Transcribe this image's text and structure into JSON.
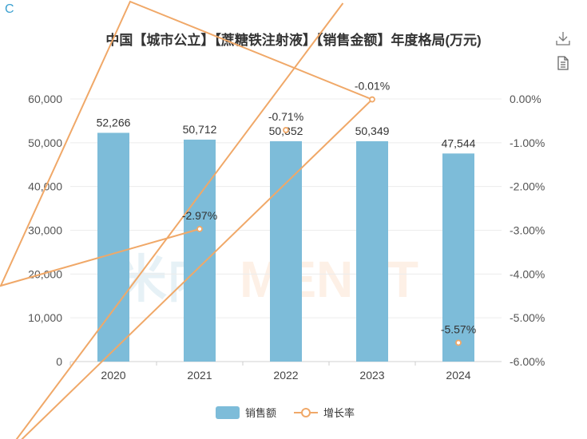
{
  "header": {
    "logo_letter": "C",
    "title": "中国【城市公立】【蔗糖铁注射液】【销售金额】年度格局(万元)"
  },
  "toolbar": {
    "download_icon": "download-icon",
    "data_view_icon": "document-icon"
  },
  "watermark": "米内MENET",
  "chart_data": {
    "type": "bar",
    "title": "中国【城市公立】【蔗糖铁注射液】【销售金额】年度格局(万元)",
    "categories": [
      "2020",
      "2021",
      "2022",
      "2023",
      "2024"
    ],
    "series": [
      {
        "name": "销售额",
        "type": "bar",
        "axis": "left",
        "color": "#7dbcd9",
        "values": [
          52266,
          50712,
          50352,
          50349,
          47544
        ],
        "labels": [
          "52,266",
          "50,712",
          "50,352",
          "50,349",
          "47,544"
        ]
      },
      {
        "name": "增长率",
        "type": "line",
        "axis": "right",
        "color": "#f0a868",
        "values": [
          null,
          -2.97,
          -0.71,
          -0.01,
          -5.57
        ],
        "labels": [
          "",
          "-2.97%",
          "-0.71%",
          "-0.01%",
          "-5.57%"
        ]
      }
    ],
    "y_left": {
      "min": 0,
      "max": 60000,
      "ticks": [
        "0",
        "10,000",
        "20,000",
        "30,000",
        "40,000",
        "50,000",
        "60,000"
      ]
    },
    "y_right": {
      "min": -6,
      "max": 0,
      "ticks": [
        "-6.00%",
        "-5.00%",
        "-4.00%",
        "-3.00%",
        "-2.00%",
        "-1.00%",
        "0.00%"
      ]
    },
    "grid": true,
    "legend": {
      "position": "bottom-center",
      "items": [
        "销售额",
        "增长率"
      ]
    }
  }
}
